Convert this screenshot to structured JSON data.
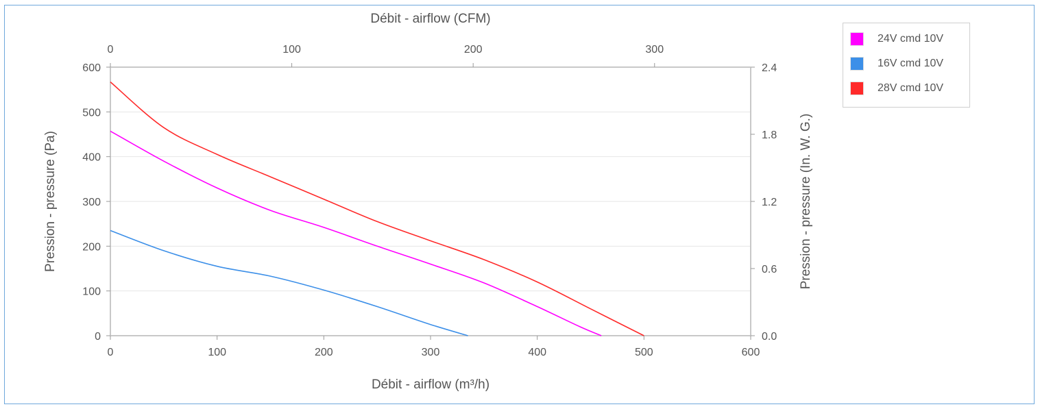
{
  "chart_data": {
    "type": "line",
    "title": "",
    "xlabel": "Débit - airflow (m³/h)",
    "x2label": "Débit - airflow (CFM)",
    "ylabel": "Pression - pressure (Pa)",
    "y2label": "Pression - pressure (In. W. G.)",
    "xlim": [
      0,
      600
    ],
    "ylim": [
      0,
      600
    ],
    "x2lim": [
      0,
      353
    ],
    "y2lim": [
      0,
      2.4
    ],
    "x_ticks": [
      "0",
      "100",
      "200",
      "300",
      "400",
      "500",
      "600"
    ],
    "y_ticks": [
      "0",
      "100",
      "200",
      "300",
      "400",
      "500",
      "600"
    ],
    "x2_ticks": [
      "0",
      "100",
      "200",
      "300"
    ],
    "y2_ticks": [
      "0.0",
      "0.6",
      "1.2",
      "1.8",
      "2.4"
    ],
    "grid": "horizontal",
    "legend_position": "top-right",
    "series": [
      {
        "name": "24V cmd 10V",
        "color": "#ff00ff",
        "points": [
          [
            0,
            457
          ],
          [
            50,
            390
          ],
          [
            100,
            330
          ],
          [
            150,
            280
          ],
          [
            200,
            242
          ],
          [
            250,
            200
          ],
          [
            300,
            160
          ],
          [
            350,
            118
          ],
          [
            400,
            65
          ],
          [
            440,
            20
          ],
          [
            460,
            0
          ]
        ]
      },
      {
        "name": "16V cmd 10V",
        "color": "#3c8fe8",
        "points": [
          [
            0,
            235
          ],
          [
            50,
            190
          ],
          [
            100,
            155
          ],
          [
            150,
            133
          ],
          [
            200,
            102
          ],
          [
            250,
            65
          ],
          [
            300,
            25
          ],
          [
            335,
            0
          ]
        ]
      },
      {
        "name": "28V cmd 10V",
        "color": "#ff2a2a",
        "points": [
          [
            0,
            567
          ],
          [
            50,
            465
          ],
          [
            100,
            405
          ],
          [
            150,
            355
          ],
          [
            200,
            305
          ],
          [
            250,
            255
          ],
          [
            300,
            212
          ],
          [
            350,
            170
          ],
          [
            400,
            120
          ],
          [
            450,
            60
          ],
          [
            500,
            0
          ]
        ]
      }
    ]
  }
}
